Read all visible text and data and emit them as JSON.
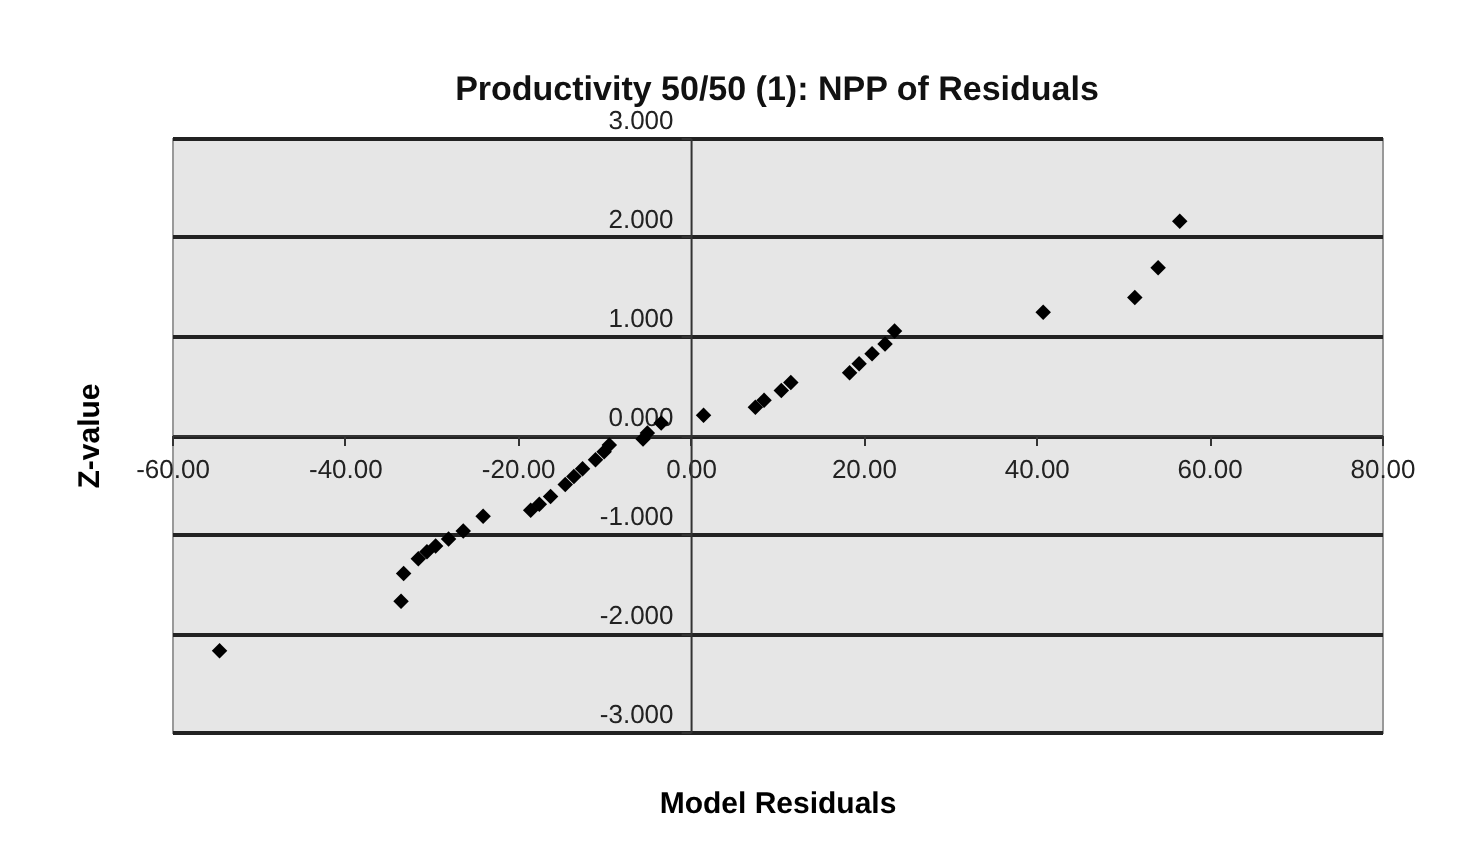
{
  "chart_data": {
    "type": "scatter",
    "title": "Productivity 50/50 (1): NPP of Residuals",
    "xlabel": "Model Residuals",
    "ylabel": "Z-value",
    "x": [
      -54.5,
      -33.5,
      -33.2,
      -31.5,
      -30.5,
      -29.5,
      -28,
      -26.3,
      -24,
      -18.5,
      -17.5,
      -16.2,
      -14.5,
      -13.5,
      -12.5,
      -11,
      -10,
      -9.4,
      -5.5,
      -5,
      -3.4,
      1.5,
      7.5,
      8.5,
      10.5,
      11.6,
      18.4,
      19.5,
      21,
      22.5,
      23.6,
      40.8,
      51.4,
      54.1,
      56.6
    ],
    "series": [
      {
        "color": "#000000",
        "values": [
          -2.18,
          -1.68,
          -1.4,
          -1.25,
          -1.18,
          -1.12,
          -1.05,
          -0.97,
          -0.82,
          -0.76,
          -0.7,
          -0.62,
          -0.5,
          -0.42,
          -0.34,
          -0.25,
          -0.17,
          -0.1,
          -0.04,
          0.02,
          0.12,
          0.2,
          0.28,
          0.35,
          0.45,
          0.53,
          0.63,
          0.72,
          0.82,
          0.92,
          1.05,
          1.24,
          1.39,
          1.69,
          2.16
        ]
      }
    ],
    "xlim": [
      -60,
      80
    ],
    "ylim": [
      -3,
      3
    ],
    "xticks": [
      {
        "value": -60,
        "label": "-60.00"
      },
      {
        "value": -40,
        "label": "-40.00"
      },
      {
        "value": -20,
        "label": "-20.00"
      },
      {
        "value": 0,
        "label": "0.00"
      },
      {
        "value": 20,
        "label": "20.00"
      },
      {
        "value": 40,
        "label": "40.00"
      },
      {
        "value": 60,
        "label": "60.00"
      },
      {
        "value": 80,
        "label": "80.00"
      }
    ],
    "yticks": [
      {
        "value": -3,
        "label": "-3.000"
      },
      {
        "value": -2,
        "label": "-2.000"
      },
      {
        "value": -1,
        "label": "-1.000"
      },
      {
        "value": 0,
        "label": "0.000"
      },
      {
        "value": 1,
        "label": "1.000"
      },
      {
        "value": 2,
        "label": "2.000"
      },
      {
        "value": 3,
        "label": "3.000"
      }
    ],
    "grid": "y",
    "marker": "diamond"
  }
}
